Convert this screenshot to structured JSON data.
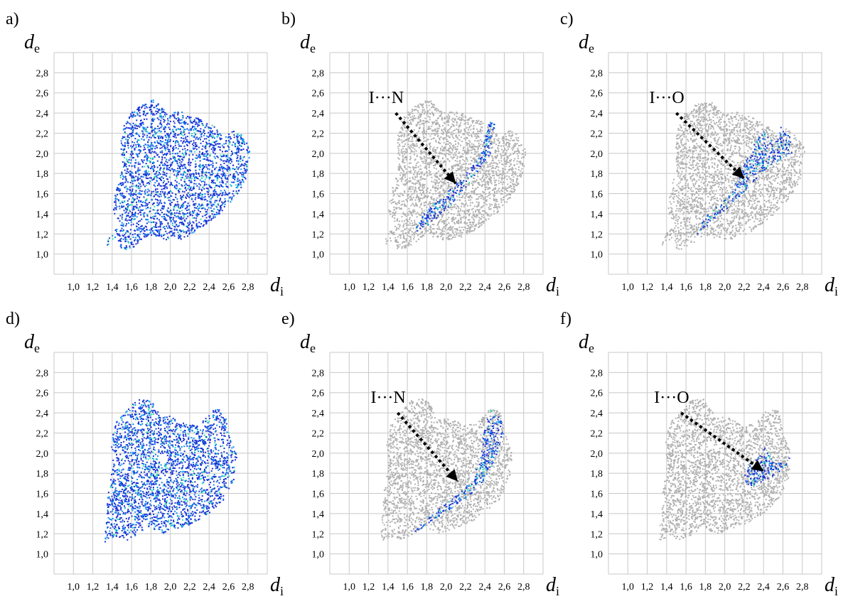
{
  "figure": {
    "colors": {
      "grid": "#c8c8c8",
      "grey_cloud": "#b0b0b0",
      "fingerprint_low": "#1a33d6",
      "fingerprint_mid": "#0a8cf0",
      "fingerprint_high": "#2ee0b0",
      "arrow": "#000000"
    }
  },
  "chart_data": [
    {
      "id": "a",
      "panel_label": "a)",
      "type": "scatter",
      "style": "full",
      "xlabel_var": "d",
      "xlabel_sub": "i",
      "ylabel_var": "d",
      "ylabel_sub": "e",
      "xticks": [
        "1,0",
        "1,2",
        "1,4",
        "1,6",
        "1,8",
        "2,0",
        "2,2",
        "2,4",
        "2,6",
        "2,8"
      ],
      "yticks": [
        "1,0",
        "1,2",
        "1,4",
        "1,6",
        "1,8",
        "2,0",
        "2,2",
        "2,4",
        "2,6",
        "2,8"
      ],
      "xlim": [
        0.8,
        3.0
      ],
      "ylim": [
        0.8,
        3.0
      ],
      "grid": true,
      "annotation": "",
      "arrow": null
    },
    {
      "id": "b",
      "panel_label": "b)",
      "type": "scatter",
      "style": "highlight_IN",
      "xlabel_var": "d",
      "xlabel_sub": "i",
      "ylabel_var": "d",
      "ylabel_sub": "e",
      "xticks": [
        "1,0",
        "1,2",
        "1,4",
        "1,6",
        "1,8",
        "2,0",
        "2,2",
        "2,4",
        "2,6",
        "2,8"
      ],
      "yticks": [
        "1,0",
        "1,2",
        "1,4",
        "1,6",
        "1,8",
        "2,0",
        "2,2",
        "2,4",
        "2,6",
        "2,8"
      ],
      "xlim": [
        0.8,
        3.0
      ],
      "ylim": [
        0.8,
        3.0
      ],
      "grid": true,
      "annotation": "I···N",
      "arrow": {
        "from": [
          1.48,
          2.4
        ],
        "to": [
          2.1,
          1.7
        ]
      }
    },
    {
      "id": "c",
      "panel_label": "c)",
      "type": "scatter",
      "style": "highlight_IO_a",
      "xlabel_var": "d",
      "xlabel_sub": "i",
      "ylabel_var": "d",
      "ylabel_sub": "e",
      "xticks": [
        "1,0",
        "1,2",
        "1,4",
        "1,6",
        "1,8",
        "2,0",
        "2,2",
        "2,4",
        "2,6",
        "2,8"
      ],
      "yticks": [
        "1,0",
        "1,2",
        "1,4",
        "1,6",
        "1,8",
        "2,0",
        "2,2",
        "2,4",
        "2,6",
        "2,8"
      ],
      "xlim": [
        0.8,
        3.0
      ],
      "ylim": [
        0.8,
        3.0
      ],
      "grid": true,
      "annotation": "I···O",
      "arrow": {
        "from": [
          1.5,
          2.4
        ],
        "to": [
          2.2,
          1.75
        ]
      }
    },
    {
      "id": "d",
      "panel_label": "d)",
      "type": "scatter",
      "style": "full2",
      "xlabel_var": "d",
      "xlabel_sub": "i",
      "ylabel_var": "d",
      "ylabel_sub": "e",
      "xticks": [
        "1,0",
        "1,2",
        "1,4",
        "1,6",
        "1,8",
        "2,0",
        "2,2",
        "2,4",
        "2,6",
        "2,8"
      ],
      "yticks": [
        "1,0",
        "1,2",
        "1,4",
        "1,6",
        "1,8",
        "2,0",
        "2,2",
        "2,4",
        "2,6",
        "2,8"
      ],
      "xlim": [
        0.8,
        3.0
      ],
      "ylim": [
        0.8,
        3.0
      ],
      "grid": true,
      "annotation": "",
      "arrow": null
    },
    {
      "id": "e",
      "panel_label": "e)",
      "type": "scatter",
      "style": "highlight_IN2",
      "xlabel_var": "d",
      "xlabel_sub": "i",
      "ylabel_var": "d",
      "ylabel_sub": "e",
      "xticks": [
        "1,0",
        "1,2",
        "1,4",
        "1,6",
        "1,8",
        "2,0",
        "2,2",
        "2,4",
        "2,6",
        "2,8"
      ],
      "yticks": [
        "1,0",
        "1,2",
        "1,4",
        "1,6",
        "1,8",
        "2,0",
        "2,2",
        "2,4",
        "2,6",
        "2,8"
      ],
      "xlim": [
        0.8,
        3.0
      ],
      "ylim": [
        0.8,
        3.0
      ],
      "grid": true,
      "annotation": "I···N",
      "arrow": {
        "from": [
          1.5,
          2.4
        ],
        "to": [
          2.12,
          1.72
        ]
      }
    },
    {
      "id": "f",
      "panel_label": "f)",
      "type": "scatter",
      "style": "highlight_IO2",
      "xlabel_var": "d",
      "xlabel_sub": "i",
      "ylabel_var": "d",
      "ylabel_sub": "e",
      "xticks": [
        "1,0",
        "1,2",
        "1,4",
        "1,6",
        "1,8",
        "2,0",
        "2,2",
        "2,4",
        "2,6",
        "2,8"
      ],
      "yticks": [
        "1,0",
        "1,2",
        "1,4",
        "1,6",
        "1,8",
        "2,0",
        "2,2",
        "2,4",
        "2,6",
        "2,8"
      ],
      "xlim": [
        0.8,
        3.0
      ],
      "ylim": [
        0.8,
        3.0
      ],
      "grid": true,
      "annotation": "I···O",
      "arrow": {
        "from": [
          1.55,
          2.4
        ],
        "to": [
          2.4,
          1.82
        ]
      }
    }
  ]
}
